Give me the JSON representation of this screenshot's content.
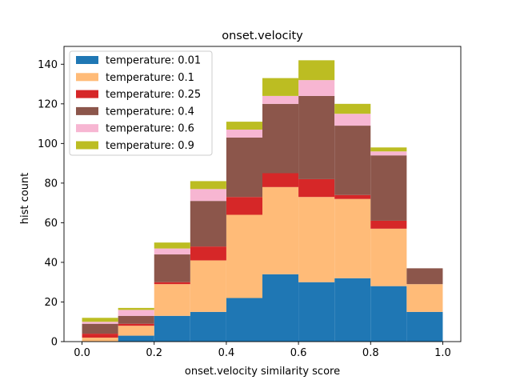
{
  "chart_data": {
    "type": "bar",
    "stacked": true,
    "title": "onset.velocity",
    "xlabel": "onset.velocity similarity score",
    "ylabel": "hist count",
    "xlim": [
      -0.05,
      1.05
    ],
    "ylim": [
      0,
      149
    ],
    "xticks": [
      0.0,
      0.2,
      0.4,
      0.6,
      0.8,
      1.0
    ],
    "xtick_labels": [
      "0.0",
      "0.2",
      "0.4",
      "0.6",
      "0.8",
      "1.0"
    ],
    "yticks": [
      0,
      20,
      40,
      60,
      80,
      100,
      120,
      140
    ],
    "ytick_labels": [
      "0",
      "20",
      "40",
      "60",
      "80",
      "100",
      "120",
      "140"
    ],
    "bin_edges": [
      0.0,
      0.1,
      0.2,
      0.3,
      0.4,
      0.5,
      0.6,
      0.7,
      0.8,
      0.9,
      1.0
    ],
    "legend_position": "upper-left",
    "grid": false,
    "series": [
      {
        "name": "temperature: 0.01",
        "color": "#1f77b4",
        "values": [
          0,
          3,
          13,
          15,
          22,
          34,
          30,
          32,
          28,
          15
        ]
      },
      {
        "name": "temperature: 0.1",
        "color": "#ffbb78",
        "values": [
          2,
          5,
          16,
          26,
          42,
          44,
          43,
          40,
          29,
          14
        ]
      },
      {
        "name": "temperature: 0.25",
        "color": "#d62728",
        "values": [
          2,
          1,
          1,
          7,
          9,
          7,
          9,
          2,
          4,
          0
        ]
      },
      {
        "name": "temperature: 0.4",
        "color": "#8c564b",
        "values": [
          5,
          4,
          14,
          23,
          30,
          35,
          42,
          35,
          33,
          8
        ]
      },
      {
        "name": "temperature: 0.6",
        "color": "#f7b6d2",
        "values": [
          1,
          3,
          3,
          6,
          4,
          4,
          8,
          6,
          2,
          0
        ]
      },
      {
        "name": "temperature: 0.9",
        "color": "#bcbd22",
        "values": [
          2,
          1,
          3,
          4,
          4,
          9,
          10,
          5,
          2,
          0
        ]
      }
    ]
  }
}
